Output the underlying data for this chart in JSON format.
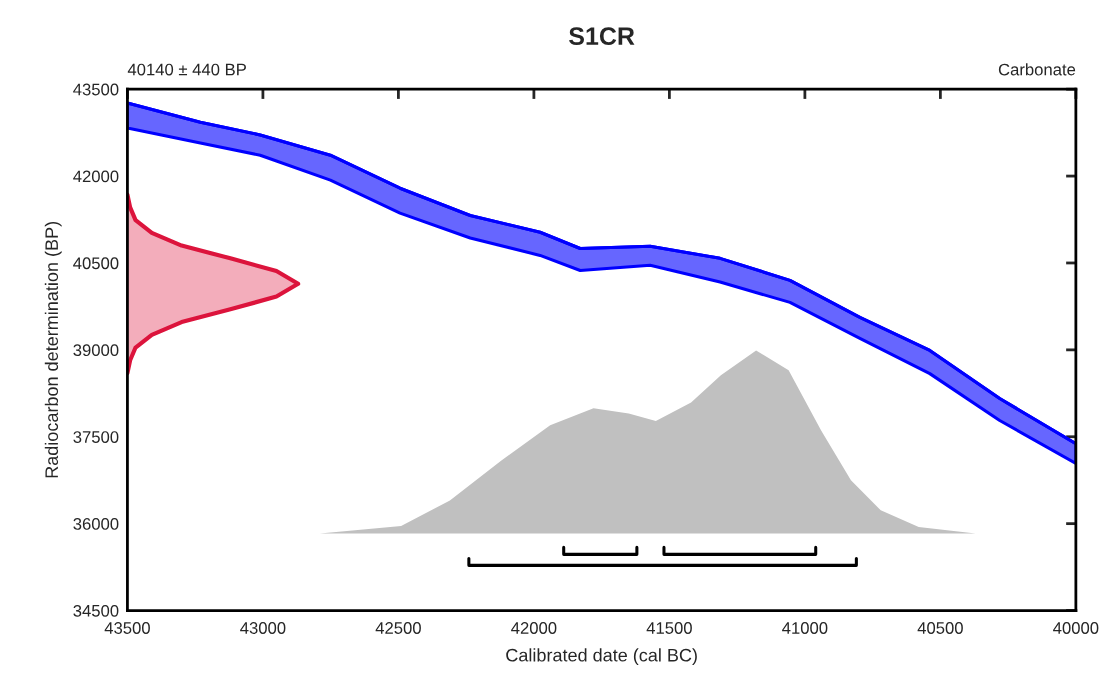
{
  "chart_data": {
    "type": "area",
    "title": "S1CR",
    "xlabel": "Calibrated date (cal BC)",
    "ylabel": "Radiocarbon determination (BP)",
    "annotations": [
      "40140 ± 440 BP",
      "Carbonate"
    ],
    "xlim": [
      43500,
      40000
    ],
    "xticks": [
      43500,
      43000,
      42500,
      42000,
      41500,
      41000,
      40500,
      40000
    ],
    "ylim": [
      34500,
      43500
    ],
    "yticks": [
      34500,
      36000,
      37500,
      39000,
      40500,
      42000,
      43500
    ],
    "grid": false,
    "legend": false,
    "series": [
      {
        "type": "line",
        "color": "#0000ff",
        "x": [
          43500,
          43231,
          43010,
          42751,
          42494,
          42235,
          41977,
          41829,
          41571,
          41313,
          41055,
          40797,
          40539,
          40281,
          40000
        ],
        "values": [
          43260,
          42930,
          42710,
          42360,
          41790,
          41320,
          41030,
          40750,
          40790,
          40580,
          40200,
          39560,
          38990,
          38160,
          37380
        ],
        "upper": [
          43260,
          42930,
          42710,
          42360,
          41790,
          41320,
          41030,
          40750,
          40790,
          40580,
          40200,
          39560,
          38990,
          38160,
          37380
        ],
        "lower": [
          42830,
          42570,
          42360,
          41930,
          41360,
          40930,
          40630,
          40370,
          40460,
          40170,
          39820,
          39200,
          38590,
          37780,
          37040
        ]
      },
      {
        "color": "#dc143c",
        "x": [
          43500,
          43490,
          43470,
          43410,
          43300,
          43120,
          42950,
          42870,
          42950,
          43120,
          43300,
          43410,
          43470,
          43490,
          43500
        ],
        "values": [
          38600,
          38820,
          39040,
          39260,
          39480,
          39700,
          39920,
          40140,
          40360,
          40580,
          40800,
          41020,
          41240,
          41460,
          41680
        ]
      },
      {
        "color": "#c0c0c0",
        "x": [
          42790,
          42490,
          42310,
          42120,
          41940,
          41780,
          41650,
          41550,
          41420,
          41310,
          41180,
          41060,
          40940,
          40830,
          40720,
          40580,
          40370
        ],
        "values": [
          35830,
          35960,
          36400,
          37090,
          37700,
          37990,
          37900,
          37770,
          38090,
          38560,
          38990,
          38650,
          37610,
          36750,
          36230,
          35940,
          35830
        ]
      },
      {
        "type": "line",
        "color": "#000000",
        "x": [
          42240,
          42240,
          40810,
          40810
        ],
        "values": [
          35400,
          35280,
          35280,
          35400
        ]
      },
      {
        "type": "line",
        "color": "#000000",
        "x": [
          41890,
          41890,
          41620,
          41620
        ],
        "values": [
          35590,
          35470,
          35470,
          35590
        ]
      },
      {
        "type": "line",
        "color": "#000000",
        "x": [
          41520,
          41520,
          40960,
          40960
        ],
        "values": [
          35590,
          35470,
          35470,
          35590
        ]
      }
    ]
  }
}
